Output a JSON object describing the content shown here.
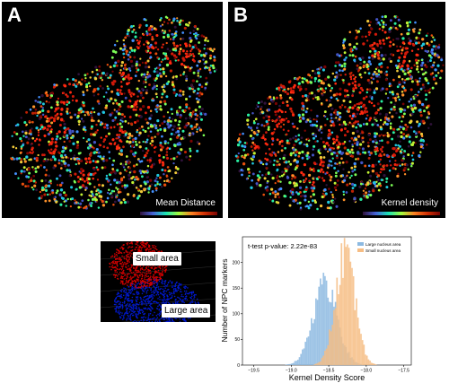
{
  "panels": {
    "a": {
      "letter": "A",
      "colorbar_label": "Mean Distance"
    },
    "b": {
      "letter": "B",
      "colorbar_label": "Kernel density"
    },
    "c": {
      "small_label": "Small area",
      "large_label": "Large area"
    }
  },
  "colors": {
    "small": "#d40000",
    "large": "#0019d0",
    "hist_large": "#8cb9e1",
    "hist_small": "#f6bd84"
  },
  "chart_data": {
    "type": "histogram",
    "title": "",
    "annotation": "t-test p-value: 2.22e-83",
    "xlabel": "Kernel Density Score",
    "ylabel": "Number of NPC markers",
    "xlim": [
      -19.65,
      -17.4
    ],
    "ylim": [
      0,
      250
    ],
    "xticks": [
      -19.5,
      -19.0,
      -18.5,
      -18.0,
      -17.5
    ],
    "xtick_labels": [
      "−19.5",
      "−19.0",
      "−18.5",
      "−18.0",
      "−17.5"
    ],
    "yticks": [
      0,
      50,
      100,
      150,
      200
    ],
    "legend": {
      "placement": "top-right",
      "entries": [
        "Large nucleus area",
        "Small nucleus area"
      ]
    },
    "series": [
      {
        "name": "Large nucleus area",
        "color": "#8cb9e1",
        "mean": -18.55,
        "sd": 0.16,
        "peak": 160
      },
      {
        "name": "Small nucleus area",
        "color": "#f6bd84",
        "mean": -18.28,
        "sd": 0.13,
        "peak": 215
      }
    ]
  }
}
